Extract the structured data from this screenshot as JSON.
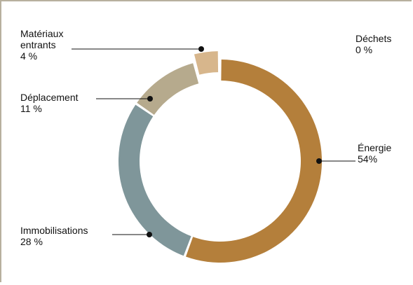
{
  "chart_data": {
    "type": "donut",
    "categories": [
      "Énergie",
      "Immobilisations",
      "Déplacement",
      "Matériaux entrants",
      "Déchets"
    ],
    "values": [
      54,
      28,
      11,
      4,
      0
    ],
    "value_labels": [
      "54%",
      "28 %",
      "11 %",
      "4 %",
      "0 %"
    ],
    "colors": [
      "#b47f3b",
      "#7f969a",
      "#b6aa8d",
      "#d7b68c",
      "#c9c2b0"
    ]
  }
}
